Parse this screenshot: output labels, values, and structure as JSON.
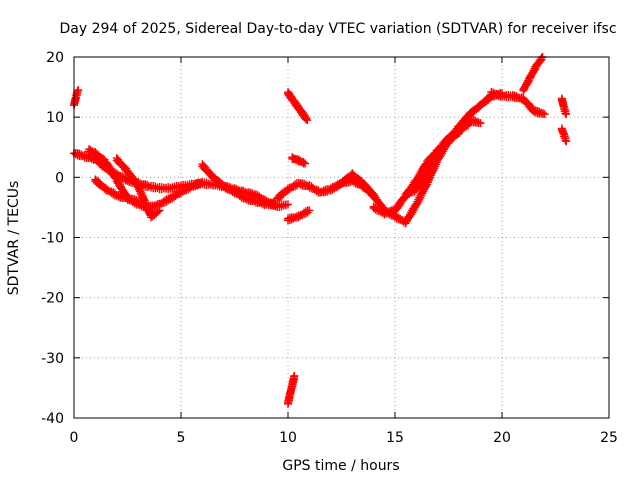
{
  "chart_data": {
    "type": "scatter",
    "title": "Day 294 of 2025, Sidereal Day-to-day VTEC variation (SDTVAR) for receiver ifsc",
    "xlabel": "GPS time / hours",
    "ylabel": "SDTVAR / TECUs",
    "xlim": [
      0,
      25
    ],
    "ylim": [
      -40,
      20
    ],
    "xticks": [
      0,
      5,
      10,
      15,
      20,
      25
    ],
    "yticks": [
      -40,
      -30,
      -20,
      -10,
      0,
      10,
      20
    ],
    "grid": true,
    "marker": "plus",
    "color": "#ff0000",
    "series": [
      {
        "name": "s1",
        "x": [
          0.0,
          0.1,
          0.2
        ],
        "y": [
          12.0,
          13.5,
          14.5
        ]
      },
      {
        "name": "s2",
        "x": [
          0.0,
          0.5,
          1.0,
          1.5,
          2.0,
          2.5,
          3.0,
          3.5,
          4.0,
          4.5,
          5.0,
          5.5,
          6.0,
          6.5,
          7.0,
          7.5,
          8.0,
          8.5,
          9.0,
          9.5,
          10.0
        ],
        "y": [
          4.0,
          3.5,
          3.0,
          1.5,
          0.5,
          -0.5,
          -1.0,
          -1.5,
          -1.8,
          -1.8,
          -1.5,
          -1.2,
          -1.0,
          -1.2,
          -1.5,
          -2.0,
          -2.5,
          -3.0,
          -4.0,
          -4.8,
          -4.5
        ]
      },
      {
        "name": "s3",
        "x": [
          0.7,
          1.0,
          1.5,
          2.0,
          2.5,
          3.0
        ],
        "y": [
          4.5,
          4.0,
          2.5,
          -0.5,
          -3.5,
          -4.0
        ]
      },
      {
        "name": "s4",
        "x": [
          1.0,
          1.5,
          2.0,
          2.5,
          3.0,
          3.5,
          4.0,
          4.5,
          5.0,
          5.5,
          6.0
        ],
        "y": [
          -0.5,
          -2.0,
          -3.0,
          -3.5,
          -4.5,
          -5.0,
          -4.5,
          -3.5,
          -2.5,
          -1.5,
          -0.8
        ]
      },
      {
        "name": "s5",
        "x": [
          2.0,
          2.5,
          3.0,
          3.3,
          3.6,
          4.0
        ],
        "y": [
          3.0,
          1.0,
          -1.5,
          -4.0,
          -6.5,
          -5.5
        ]
      },
      {
        "name": "s6",
        "x": [
          6.0,
          6.5,
          7.0,
          7.5,
          8.0,
          8.5,
          9.0,
          9.5
        ],
        "y": [
          2.0,
          0.0,
          -1.5,
          -2.5,
          -3.5,
          -4.0,
          -4.5,
          -4.5
        ]
      },
      {
        "name": "s7",
        "x": [
          10.0,
          10.3,
          10.6,
          10.9
        ],
        "y": [
          14.0,
          12.5,
          11.0,
          9.5
        ]
      },
      {
        "name": "s8",
        "x": [
          10.2,
          10.5,
          10.8
        ],
        "y": [
          3.2,
          2.8,
          2.3
        ]
      },
      {
        "name": "s9",
        "x": [
          10.0,
          10.5,
          11.0
        ],
        "y": [
          -7.0,
          -6.5,
          -5.5
        ]
      },
      {
        "name": "s10",
        "x": [
          10.0,
          10.1,
          10.2,
          10.3
        ],
        "y": [
          -37.5,
          -36.0,
          -34.5,
          -33.0
        ]
      },
      {
        "name": "s11",
        "x": [
          9.5,
          10.0,
          10.5,
          11.0,
          11.5,
          12.0,
          12.5,
          13.0,
          13.5,
          14.0
        ],
        "y": [
          -3.5,
          -2.0,
          -1.0,
          -1.5,
          -2.5,
          -2.0,
          -1.0,
          -0.5,
          -1.5,
          -3.0
        ]
      },
      {
        "name": "s12",
        "x": [
          12.0,
          12.5,
          13.0,
          13.5,
          14.0,
          14.5,
          15.0,
          15.5,
          16.0,
          16.5,
          17.0,
          17.5,
          18.0,
          18.5,
          19.0,
          19.5,
          20.0
        ],
        "y": [
          -2.0,
          -1.0,
          0.5,
          -1.0,
          -3.0,
          -5.5,
          -6.5,
          -7.5,
          -4.5,
          -1.0,
          3.0,
          6.0,
          8.5,
          10.5,
          12.0,
          13.5,
          14.0
        ]
      },
      {
        "name": "s13",
        "x": [
          14.0,
          14.5,
          15.0,
          15.5,
          16.0,
          16.5,
          17.0,
          17.5,
          18.0,
          18.5
        ],
        "y": [
          -5.0,
          -6.0,
          -5.5,
          -3.0,
          -0.5,
          2.5,
          4.5,
          6.5,
          8.0,
          9.0
        ]
      },
      {
        "name": "s14",
        "x": [
          15.5,
          16.0,
          16.5,
          17.0,
          17.5,
          18.0,
          18.5,
          19.0
        ],
        "y": [
          -3.0,
          -2.0,
          1.0,
          4.0,
          6.0,
          7.5,
          9.5,
          9.0
        ]
      },
      {
        "name": "s15",
        "x": [
          19.5,
          20.0,
          20.5,
          21.0,
          21.5,
          22.0
        ],
        "y": [
          14.0,
          13.5,
          13.5,
          13.0,
          11.0,
          10.5
        ]
      },
      {
        "name": "s16",
        "x": [
          21.0,
          21.3,
          21.6,
          21.9
        ],
        "y": [
          14.5,
          16.5,
          18.5,
          20.0
        ]
      },
      {
        "name": "s17",
        "x": [
          22.8,
          22.9,
          23.0
        ],
        "y": [
          13.0,
          11.5,
          10.5
        ]
      },
      {
        "name": "s18",
        "x": [
          22.8,
          22.9,
          23.0
        ],
        "y": [
          8.0,
          7.0,
          6.0
        ]
      }
    ]
  }
}
